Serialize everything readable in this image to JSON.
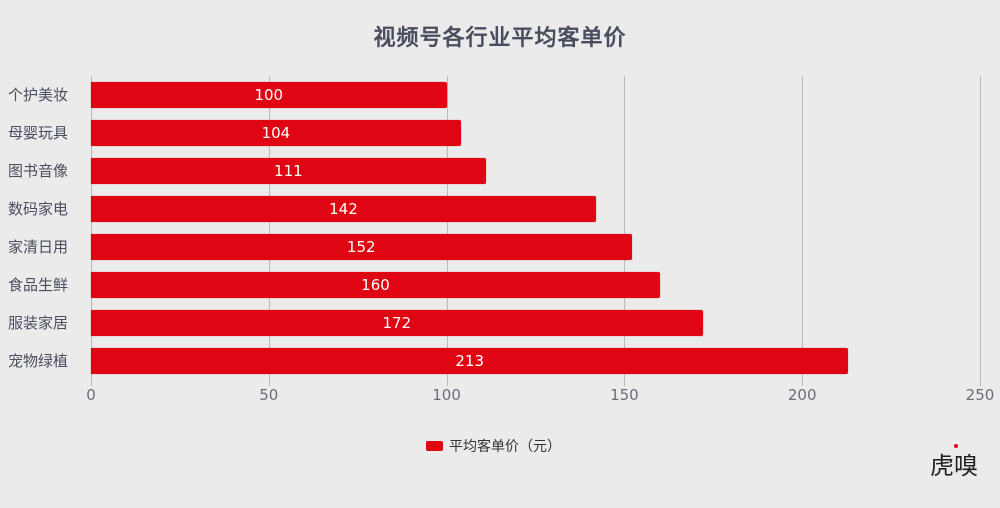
{
  "chart_data": {
    "type": "bar",
    "orientation": "horizontal",
    "title": "视频号各行业平均客单价",
    "categories": [
      "个护美妆",
      "母婴玩具",
      "图书音像",
      "数码家电",
      "家清日用",
      "食品生鲜",
      "服装家居",
      "宠物绿植"
    ],
    "series": [
      {
        "name": "平均客单价（元）",
        "values": [
          100,
          104,
          111,
          142,
          152,
          160,
          172,
          213
        ],
        "color": "#e00512"
      }
    ],
    "xlabel": "",
    "ylabel": "",
    "xlim": [
      0,
      250
    ],
    "x_ticks": [
      "0",
      "50",
      "100",
      "150",
      "200",
      "250"
    ],
    "grid": "vertical",
    "legend_position": "bottom",
    "data_labels": "inside-center"
  },
  "title": "视频号各行业平均客单价",
  "legend": {
    "label": "平均客单价（元）"
  },
  "watermark": "虎嗅",
  "colors": {
    "bar": "#e00512",
    "background": "#ebebeb",
    "title": "#4a4d5e"
  }
}
